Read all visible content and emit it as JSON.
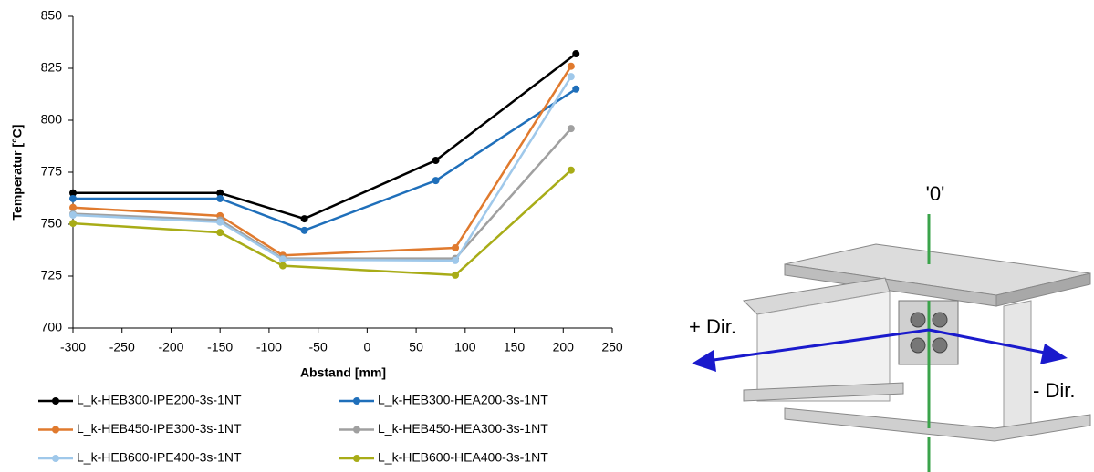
{
  "chart_data": {
    "type": "line",
    "xlabel": "Abstand [mm]",
    "ylabel": "Temperatur [°C]",
    "xlim": [
      -300,
      250
    ],
    "xticks": [
      -300,
      -250,
      -200,
      -150,
      -100,
      -50,
      0,
      50,
      100,
      150,
      200,
      250
    ],
    "ylim": [
      700,
      850
    ],
    "yticks": [
      700,
      725,
      750,
      775,
      800,
      825,
      850
    ],
    "series": [
      {
        "name": "L_k-HEB300-IPE200-3s-1NT",
        "color": "#000000",
        "x": [
          -300,
          -150,
          -64,
          70,
          213
        ],
        "values": [
          765,
          765,
          752.6,
          780.7,
          832
        ]
      },
      {
        "name": "L_k-HEB300-HEA200-3s-1NT",
        "color": "#1f6fba",
        "x": [
          -300,
          -150,
          -64,
          70,
          213
        ],
        "values": [
          762.3,
          762.3,
          747,
          771,
          815
        ]
      },
      {
        "name": "L_k-HEB450-IPE300-3s-1NT",
        "color": "#e07a2e",
        "x": [
          -300,
          -150,
          -86,
          90,
          208
        ],
        "values": [
          758,
          754,
          735,
          738.6,
          826
        ]
      },
      {
        "name": "L_k-HEB450-HEA300-3s-1NT",
        "color": "#a0a0a0",
        "x": [
          -300,
          -150,
          -86,
          90,
          208
        ],
        "values": [
          755,
          752,
          733.5,
          733.5,
          796
        ]
      },
      {
        "name": "L_k-HEB600-IPE400-3s-1NT",
        "color": "#9fc8ea",
        "x": [
          -300,
          -150,
          -86,
          90,
          208
        ],
        "values": [
          754.4,
          751,
          733,
          732.5,
          821
        ]
      },
      {
        "name": "L_k-HEB600-HEA400-3s-1NT",
        "color": "#a8ac17",
        "x": [
          -300,
          -150,
          -86,
          90,
          208
        ],
        "values": [
          750.4,
          746,
          730,
          725.5,
          776
        ]
      }
    ]
  },
  "diagram": {
    "zero_label": "'0'",
    "plus_label": "+ Dir.",
    "minus_label": "- Dir."
  }
}
